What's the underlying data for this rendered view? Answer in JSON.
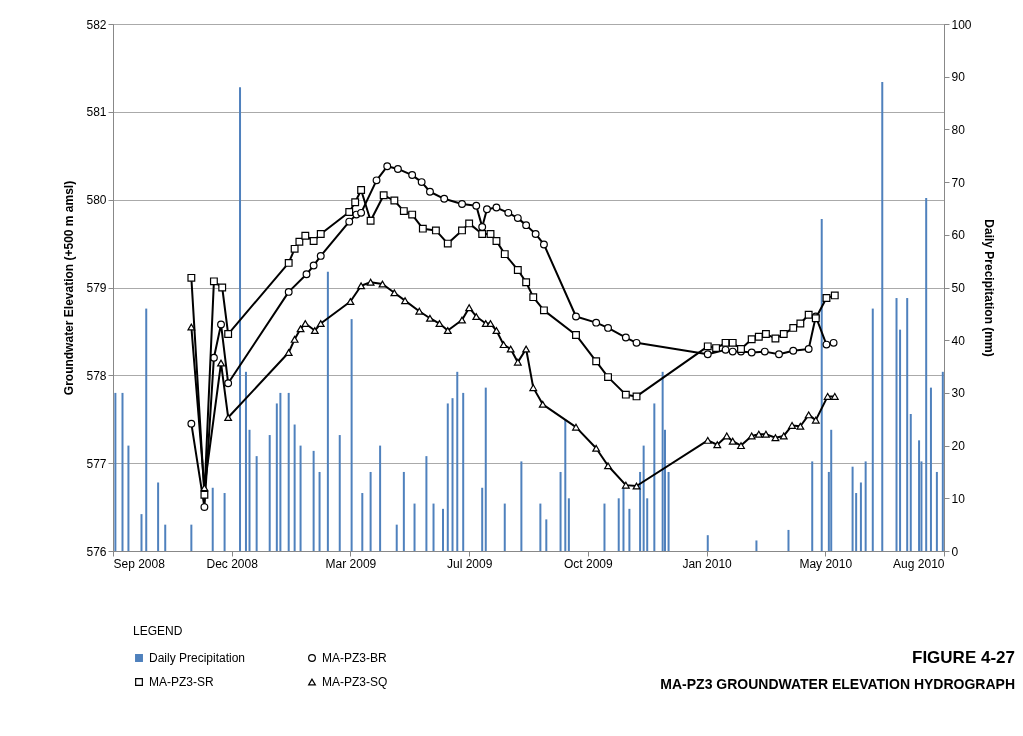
{
  "chart_data": {
    "type": "line",
    "title": "MA-PZ3 GROUNDWATER ELEVATION HYDROGRAPH",
    "annotations": [
      "FIGURE 4-27"
    ],
    "ylabel": "Groundwater Elevation (+500 m amsl)",
    "y2label": "Daily Precipitation (mm)",
    "legend_title": "LEGEND",
    "legend": "bottom",
    "grid": "y",
    "line_style": "solid",
    "xlim": [
      "2008-09-10",
      "2010-08-11"
    ],
    "xticks": [
      {
        "value": "2008-09-10",
        "label": "Sep 2008"
      },
      {
        "value": "2008-12-19",
        "label": "Dec 2008"
      },
      {
        "value": "2009-03-29",
        "label": "Mar 2009"
      },
      {
        "value": "2009-07-07",
        "label": "Jul 2009"
      },
      {
        "value": "2009-10-15",
        "label": "Oct 2009"
      },
      {
        "value": "2010-01-23",
        "label": "Jan 2010"
      },
      {
        "value": "2010-05-03",
        "label": "May 2010"
      },
      {
        "value": "2010-08-11",
        "label": "Aug 2010"
      }
    ],
    "ylim": [
      576,
      582
    ],
    "yticks": [
      576,
      577,
      578,
      579,
      580,
      581,
      582
    ],
    "y2lim": [
      0,
      100
    ],
    "y2ticks": [
      0,
      10,
      20,
      30,
      40,
      50,
      60,
      70,
      80,
      90,
      100
    ],
    "series": [
      {
        "name": "Daily Precipitation",
        "type": "bar",
        "axis": "y2",
        "color": "#4f81bd",
        "x": [
          "2008-09-12",
          "2008-09-18",
          "2008-09-23",
          "2008-10-04",
          "2008-10-08",
          "2008-10-18",
          "2008-10-24",
          "2008-11-15",
          "2008-12-03",
          "2008-12-13",
          "2008-12-26",
          "2008-12-31",
          "2009-01-03",
          "2009-01-09",
          "2009-01-20",
          "2009-01-26",
          "2009-01-29",
          "2009-02-05",
          "2009-02-10",
          "2009-02-15",
          "2009-02-26",
          "2009-03-03",
          "2009-03-10",
          "2009-03-20",
          "2009-03-30",
          "2009-04-08",
          "2009-04-15",
          "2009-04-23",
          "2009-05-07",
          "2009-05-13",
          "2009-05-22",
          "2009-06-01",
          "2009-06-07",
          "2009-06-15",
          "2009-06-19",
          "2009-06-23",
          "2009-06-27",
          "2009-07-02",
          "2009-07-18",
          "2009-07-21",
          "2009-08-06",
          "2009-08-20",
          "2009-09-05",
          "2009-09-10",
          "2009-09-22",
          "2009-09-26",
          "2009-09-29",
          "2009-10-29",
          "2009-11-10",
          "2009-11-14",
          "2009-11-19",
          "2009-11-28",
          "2009-12-01",
          "2009-12-04",
          "2009-12-10",
          "2009-12-17",
          "2009-12-19",
          "2009-12-22",
          "2010-01-24",
          "2010-03-06",
          "2010-04-02",
          "2010-04-22",
          "2010-04-30",
          "2010-05-06",
          "2010-05-08",
          "2010-05-26",
          "2010-05-29",
          "2010-06-02",
          "2010-06-06",
          "2010-06-12",
          "2010-06-20",
          "2010-07-02",
          "2010-07-05",
          "2010-07-11",
          "2010-07-14",
          "2010-07-21",
          "2010-07-23",
          "2010-07-27",
          "2010-07-31",
          "2010-08-05",
          "2010-08-10"
        ],
        "values": [
          30,
          30,
          20,
          7,
          46,
          13,
          5,
          5,
          12,
          11,
          88,
          34,
          23,
          18,
          22,
          28,
          30,
          30,
          24,
          20,
          19,
          15,
          53,
          22,
          44,
          11,
          15,
          20,
          5,
          15,
          9,
          18,
          9,
          8,
          28,
          29,
          34,
          30,
          12,
          31,
          9,
          17,
          9,
          6,
          15,
          25,
          10,
          9,
          10,
          12,
          8,
          15,
          20,
          10,
          28,
          34,
          23,
          15,
          3,
          2,
          4,
          17,
          63,
          15,
          23,
          16,
          11,
          13,
          17,
          46,
          89,
          48,
          42,
          48,
          26,
          21,
          17,
          67,
          31,
          15,
          34
        ]
      },
      {
        "name": "MA-PZ3-BR",
        "marker": "circle",
        "color": "#000000",
        "x": [
          "2008-11-15",
          "2008-11-26",
          "2008-12-04",
          "2008-12-10",
          "2008-12-16",
          "2009-02-05",
          "2009-02-20",
          "2009-02-26",
          "2009-03-04",
          "2009-03-28",
          "2009-04-03",
          "2009-04-07",
          "2009-04-20",
          "2009-04-29",
          "2009-05-08",
          "2009-05-20",
          "2009-05-28",
          "2009-06-04",
          "2009-06-16",
          "2009-07-01",
          "2009-07-13",
          "2009-07-18",
          "2009-07-22",
          "2009-07-30",
          "2009-08-09",
          "2009-08-17",
          "2009-08-24",
          "2009-09-01",
          "2009-09-08",
          "2009-10-05",
          "2009-10-22",
          "2009-11-01",
          "2009-11-16",
          "2009-11-25",
          "2010-01-24",
          "2010-02-08",
          "2010-02-14",
          "2010-02-21",
          "2010-03-02",
          "2010-03-13",
          "2010-03-25",
          "2010-04-06",
          "2010-04-19",
          "2010-04-25",
          "2010-05-04",
          "2010-05-10"
        ],
        "values": [
          577.45,
          576.5,
          578.2,
          578.58,
          577.91,
          578.95,
          579.15,
          579.25,
          579.36,
          579.75,
          579.83,
          579.85,
          580.22,
          580.38,
          580.35,
          580.28,
          580.2,
          580.09,
          580.01,
          579.95,
          579.93,
          579.69,
          579.89,
          579.91,
          579.85,
          579.79,
          579.71,
          579.61,
          579.49,
          578.67,
          578.6,
          578.54,
          578.43,
          578.37,
          578.24,
          578.29,
          578.27,
          578.27,
          578.26,
          578.27,
          578.24,
          578.28,
          578.3,
          578.67,
          578.35,
          578.37
        ]
      },
      {
        "name": "MA-PZ3-SR",
        "marker": "square",
        "color": "#000000",
        "x": [
          "2008-11-15",
          "2008-11-26",
          "2008-12-04",
          "2008-12-11",
          "2008-12-16",
          "2009-02-05",
          "2009-02-10",
          "2009-02-14",
          "2009-02-19",
          "2009-02-26",
          "2009-03-04",
          "2009-03-28",
          "2009-04-02",
          "2009-04-07",
          "2009-04-15",
          "2009-04-26",
          "2009-05-05",
          "2009-05-13",
          "2009-05-20",
          "2009-05-29",
          "2009-06-09",
          "2009-06-19",
          "2009-07-01",
          "2009-07-07",
          "2009-07-18",
          "2009-07-25",
          "2009-07-30",
          "2009-08-06",
          "2009-08-17",
          "2009-08-24",
          "2009-08-30",
          "2009-09-08",
          "2009-10-05",
          "2009-10-22",
          "2009-11-01",
          "2009-11-16",
          "2009-11-25",
          "2010-01-24",
          "2010-01-31",
          "2010-02-08",
          "2010-02-14",
          "2010-02-21",
          "2010-03-02",
          "2010-03-08",
          "2010-03-14",
          "2010-03-22",
          "2010-03-29",
          "2010-04-06",
          "2010-04-12",
          "2010-04-19",
          "2010-04-25",
          "2010-05-04",
          "2010-05-11"
        ],
        "values": [
          579.11,
          576.64,
          579.07,
          579.0,
          578.47,
          579.28,
          579.44,
          579.52,
          579.59,
          579.53,
          579.61,
          579.86,
          579.97,
          580.11,
          579.76,
          580.05,
          579.99,
          579.87,
          579.83,
          579.67,
          579.65,
          579.5,
          579.65,
          579.73,
          579.61,
          579.61,
          579.53,
          579.38,
          579.2,
          579.06,
          578.89,
          578.74,
          578.46,
          578.16,
          577.98,
          577.78,
          577.76,
          578.33,
          578.31,
          578.37,
          578.37,
          578.3,
          578.41,
          578.44,
          578.47,
          578.42,
          578.47,
          578.54,
          578.59,
          578.69,
          578.65,
          578.88,
          578.91
        ]
      },
      {
        "name": "MA-PZ3-SQ",
        "marker": "triangle",
        "color": "#000000",
        "x": [
          "2008-11-15",
          "2008-11-26",
          "2008-12-10",
          "2008-12-16",
          "2009-02-05",
          "2009-02-10",
          "2009-02-15",
          "2009-02-19",
          "2009-02-27",
          "2009-03-04",
          "2009-03-29",
          "2009-04-07",
          "2009-04-15",
          "2009-04-25",
          "2009-05-05",
          "2009-05-14",
          "2009-05-26",
          "2009-06-04",
          "2009-06-12",
          "2009-06-19",
          "2009-07-01",
          "2009-07-07",
          "2009-07-13",
          "2009-07-21",
          "2009-07-25",
          "2009-07-30",
          "2009-08-05",
          "2009-08-11",
          "2009-08-17",
          "2009-08-24",
          "2009-08-30",
          "2009-09-07",
          "2009-10-05",
          "2009-10-22",
          "2009-11-01",
          "2009-11-16",
          "2009-11-25",
          "2010-01-24",
          "2010-02-01",
          "2010-02-09",
          "2010-02-14",
          "2010-02-21",
          "2010-03-02",
          "2010-03-08",
          "2010-03-14",
          "2010-03-22",
          "2010-03-29",
          "2010-04-05",
          "2010-04-12",
          "2010-04-19",
          "2010-04-25",
          "2010-05-05",
          "2010-05-11"
        ],
        "values": [
          578.55,
          576.72,
          578.14,
          577.52,
          578.26,
          578.41,
          578.53,
          578.59,
          578.51,
          578.59,
          578.84,
          579.02,
          579.06,
          579.04,
          578.94,
          578.85,
          578.73,
          578.65,
          578.59,
          578.51,
          578.63,
          578.77,
          578.67,
          578.59,
          578.59,
          578.51,
          578.35,
          578.3,
          578.15,
          578.3,
          577.86,
          577.67,
          577.41,
          577.17,
          576.97,
          576.75,
          576.74,
          577.26,
          577.21,
          577.31,
          577.25,
          577.2,
          577.31,
          577.33,
          577.33,
          577.29,
          577.31,
          577.43,
          577.42,
          577.55,
          577.49,
          577.76,
          577.76
        ]
      }
    ]
  }
}
